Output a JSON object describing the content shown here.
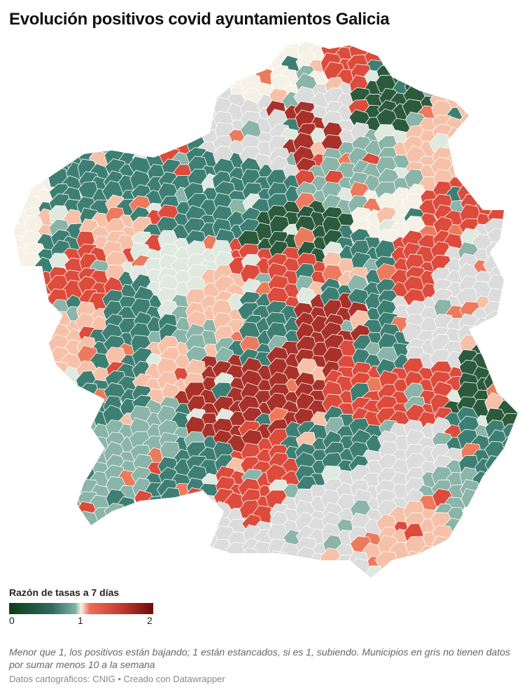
{
  "title": "Evolución positivos covid ayuntamientos Galicia",
  "legend": {
    "title": "Razón de tasas a 7 días",
    "ticks": [
      "0",
      "1",
      "2"
    ],
    "scale_colors": [
      "#0e3d12",
      "#2f6b63",
      "#7fb2a4",
      "#f6f3e4",
      "#ef6b55",
      "#c23a2e",
      "#6b0b0b"
    ],
    "no_data_color": "#dcdcdc"
  },
  "note": "Menor que 1, los positivos están bajando; 1 están estancados, si es 1, subiendo. Municipios en gris no tienen datos por sumar menos 10 a la semana",
  "source": "Datos cartográficos: CNIG • Creado con Datawrapper"
}
